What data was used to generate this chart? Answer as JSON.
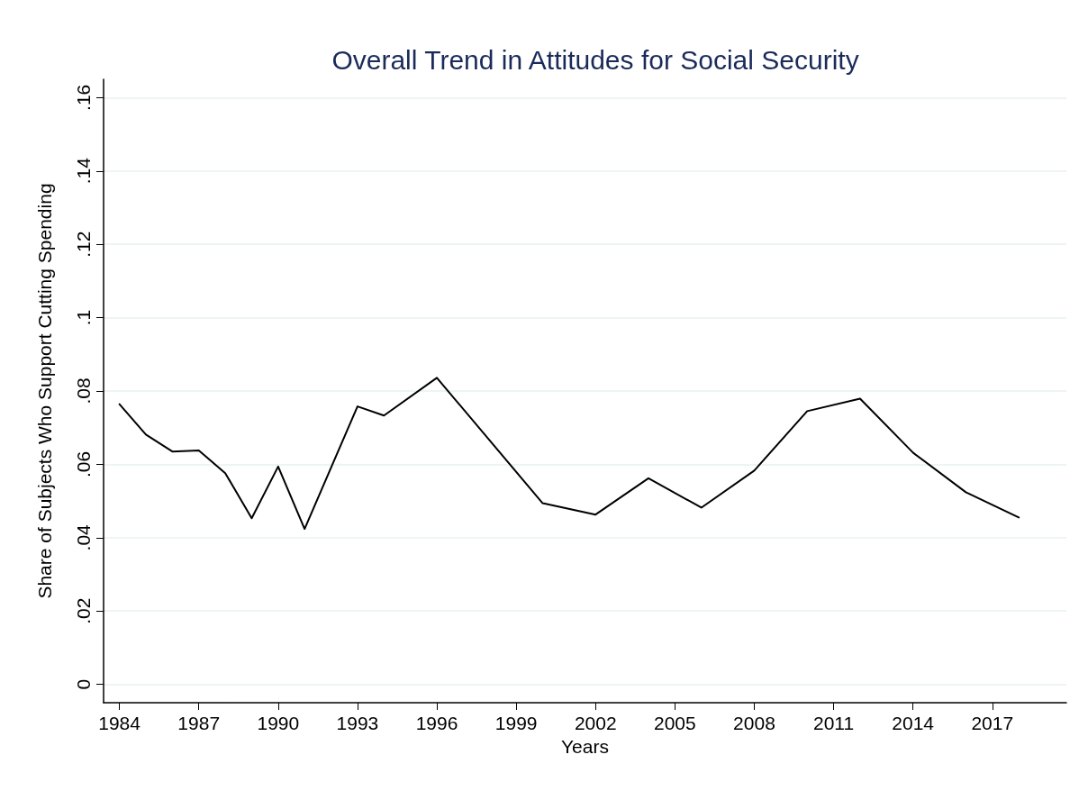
{
  "chart_data": {
    "type": "line",
    "title": "Overall Trend in Attitudes for Social Security",
    "xlabel": "Years",
    "ylabel": "Share of Subjects Who Support Cutting Spending",
    "x": [
      1984,
      1985,
      1986,
      1987,
      1988,
      1989,
      1990,
      1991,
      1993,
      1994,
      1996,
      2000,
      2002,
      2004,
      2006,
      2008,
      2010,
      2012,
      2014,
      2016,
      2018
    ],
    "series": [
      {
        "color": "#000000",
        "values": [
          0.0764,
          0.0681,
          0.0635,
          0.0638,
          0.0576,
          0.0453,
          0.0594,
          0.0424,
          0.0758,
          0.0733,
          0.0836,
          0.0494,
          0.0463,
          0.0562,
          0.0482,
          0.0583,
          0.0745,
          0.0779,
          0.0632,
          0.0524,
          0.0455
        ]
      }
    ],
    "xlim": [
      1983.4,
      2019.8
    ],
    "xticks": [
      1984,
      1987,
      1990,
      1993,
      1996,
      1999,
      2002,
      2005,
      2008,
      2011,
      2014,
      2017
    ],
    "ylim": [
      -0.005,
      0.165
    ],
    "yticks": [
      0,
      {
        "value": 0.02,
        "label": ".02"
      },
      {
        "value": 0.04,
        "label": ".04"
      },
      {
        "value": 0.06,
        "label": ".06"
      },
      {
        "value": 0.08,
        "label": ".08"
      },
      {
        "value": 0.1,
        "label": ".1"
      },
      {
        "value": 0.12,
        "label": ".12"
      },
      {
        "value": 0.14,
        "label": ".14"
      },
      {
        "value": 0.16,
        "label": ".16"
      }
    ],
    "grid": "y",
    "marker": "none",
    "line_style": "solid"
  }
}
